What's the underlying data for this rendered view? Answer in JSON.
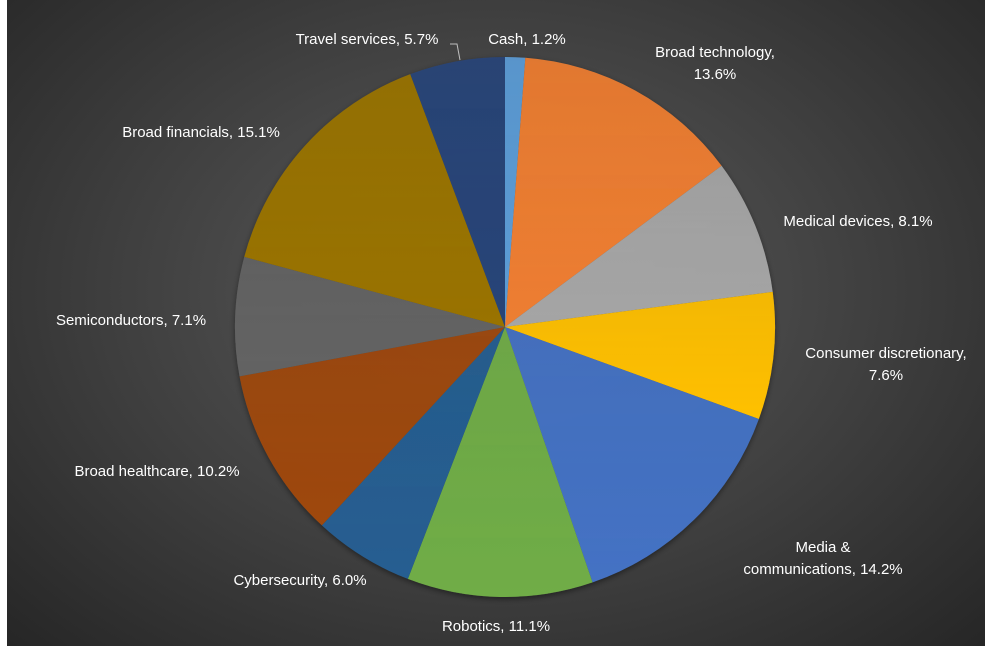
{
  "chart_data": {
    "type": "pie",
    "title": "",
    "slices": [
      {
        "label": "Cash, 1.2%",
        "value": 1.2,
        "color": "#5b9bd5"
      },
      {
        "label": "Broad technology,\n13.6%",
        "value": 13.6,
        "color": "#ed7d31"
      },
      {
        "label": "Medical devices, 8.1%",
        "value": 8.1,
        "color": "#a5a5a5"
      },
      {
        "label": "Consumer discretionary,\n7.6%",
        "value": 7.6,
        "color": "#ffc000"
      },
      {
        "label": "Media &\ncommunications, 14.2%",
        "value": 14.2,
        "color": "#4472c4"
      },
      {
        "label": "Robotics, 11.1%",
        "value": 11.1,
        "color": "#70ad47"
      },
      {
        "label": "Cybersecurity, 6.0%",
        "value": 6.0,
        "color": "#255e91"
      },
      {
        "label": "Broad healthcare, 10.2%",
        "value": 10.2,
        "color": "#9e480e"
      },
      {
        "label": "Semiconductors, 7.1%",
        "value": 7.1,
        "color": "#636363"
      },
      {
        "label": "Broad financials, 15.1%",
        "value": 15.1,
        "color": "#997300"
      },
      {
        "label": "Travel services, 5.7%",
        "value": 5.7,
        "color": "#264478"
      }
    ]
  }
}
